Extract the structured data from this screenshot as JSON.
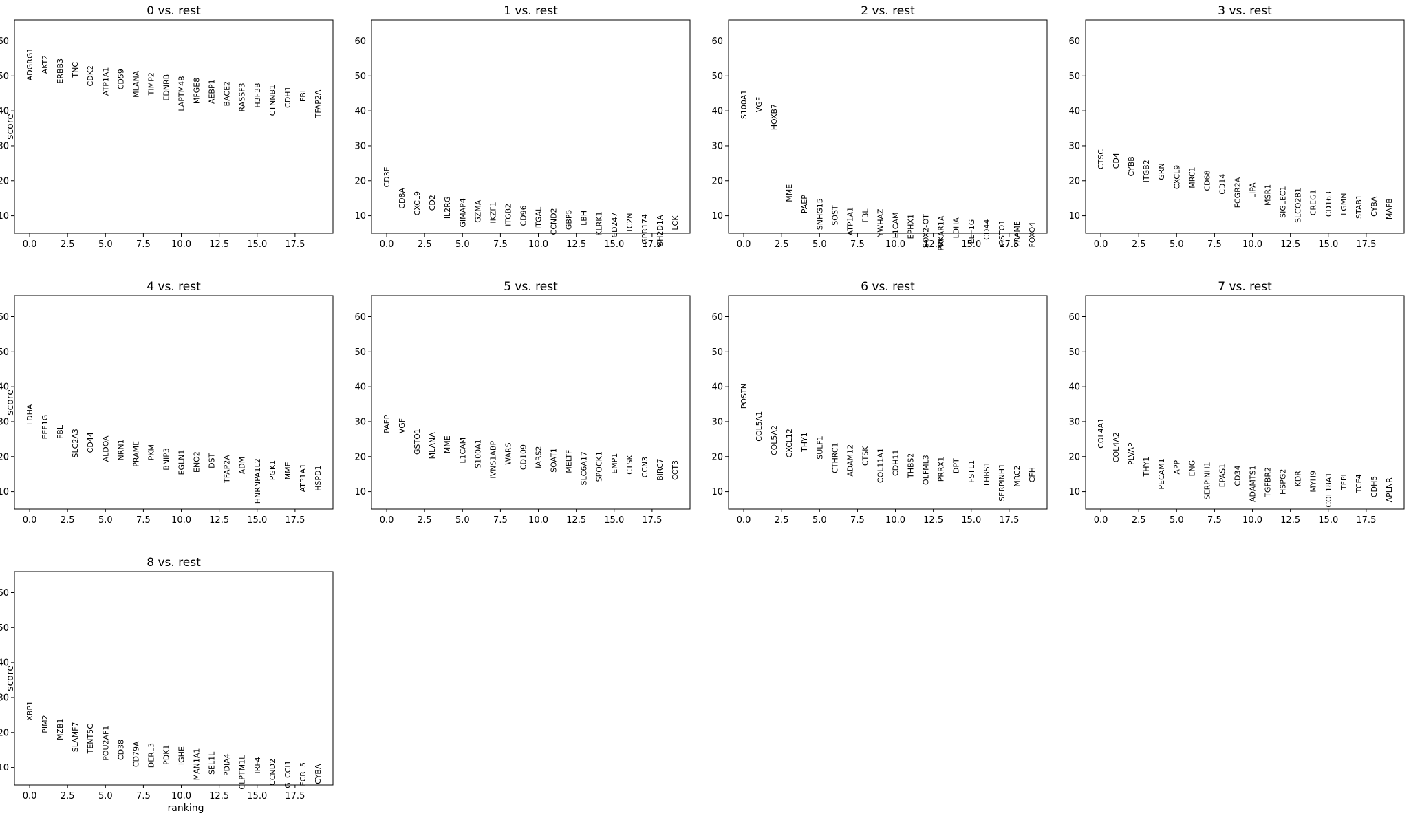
{
  "figure": {
    "ylabel": "score",
    "xlabel": "ranking"
  },
  "chart_data": [
    {
      "type": "scatter",
      "title": "0 vs. rest",
      "ylim": [
        5,
        66
      ],
      "xlim": [
        -1,
        20
      ],
      "xticks": [
        "0.0",
        "2.5",
        "5.0",
        "7.5",
        "10.0",
        "12.5",
        "15.0",
        "17.5"
      ],
      "yticks": [
        "10",
        "20",
        "30",
        "40",
        "50",
        "60"
      ],
      "genes": [
        "ADGRG1",
        "AKT2",
        "ERBB3",
        "TNC",
        "CDK2",
        "ATP1A1",
        "CD59",
        "MLANA",
        "TIMP2",
        "EDNRB",
        "LAPTM4B",
        "MFGE8",
        "AEBP1",
        "BACE2",
        "RASSF3",
        "H3F3B",
        "CTNNB1",
        "CDH1",
        "FBL",
        "TFAP2A"
      ],
      "scores": [
        58,
        56,
        55,
        54,
        53,
        52.5,
        52,
        51.5,
        51,
        50.5,
        50,
        49.5,
        49,
        48.5,
        48,
        48,
        47.5,
        47,
        46.5,
        46
      ]
    },
    {
      "type": "scatter",
      "title": "1 vs. rest",
      "ylim": [
        5,
        66
      ],
      "xlim": [
        -1,
        20
      ],
      "xticks": [
        "0.0",
        "2.5",
        "5.0",
        "7.5",
        "10.0",
        "12.5",
        "15.0",
        "17.5"
      ],
      "yticks": [
        "10",
        "20",
        "30",
        "40",
        "50",
        "60"
      ],
      "genes": [
        "CD3E",
        "CD8A",
        "CXCL9",
        "CD2",
        "IL2RG",
        "GIMAP4",
        "GZMA",
        "IKZF1",
        "ITGB2",
        "CD96",
        "ITGAL",
        "CCND2",
        "GBP5",
        "LBH",
        "KLRK1",
        "CD247",
        "TC2N",
        "GPR174",
        "SH2D1A",
        "LCK"
      ],
      "scores": [
        24,
        18,
        17,
        16,
        15.5,
        15,
        14.5,
        14,
        13.5,
        13,
        12.5,
        12.2,
        11.8,
        11.5,
        11.2,
        11,
        10.8,
        10.5,
        10.2,
        10
      ]
    },
    {
      "type": "scatter",
      "title": "2 vs. rest",
      "ylim": [
        5,
        66
      ],
      "xlim": [
        -1,
        20
      ],
      "xticks": [
        "0.0",
        "2.5",
        "5.0",
        "7.5",
        "10.0",
        "12.5",
        "15.0",
        "17.5"
      ],
      "yticks": [
        "10",
        "20",
        "30",
        "40",
        "50",
        "60"
      ],
      "genes": [
        "S100A1",
        "VGF",
        "HOXB7",
        "MME",
        "PAEP",
        "SNHG15",
        "SOST",
        "ATP1A1",
        "FBL",
        "YWHAZ",
        "L1CAM",
        "EPHX1",
        "SOX2-OT",
        "PRKAR1A",
        "LDHA",
        "EEF1G",
        "CD44",
        "GSTO1",
        "PRAME",
        "FOXO4"
      ],
      "scores": [
        46,
        44,
        42,
        19,
        16,
        15,
        13,
        12.5,
        12,
        12,
        11,
        10.5,
        10.5,
        10,
        9.5,
        9,
        9,
        8.8,
        8.5,
        8.2
      ]
    },
    {
      "type": "scatter",
      "title": "3 vs. rest",
      "ylim": [
        5,
        66
      ],
      "xlim": [
        -1,
        20
      ],
      "xticks": [
        "0.0",
        "2.5",
        "5.0",
        "7.5",
        "10.0",
        "12.5",
        "15.0",
        "17.5"
      ],
      "yticks": [
        "10",
        "20",
        "30",
        "40",
        "50",
        "60"
      ],
      "genes": [
        "CTSC",
        "CD4",
        "CYBB",
        "ITGB2",
        "GRN",
        "CXCL9",
        "MRC1",
        "CD68",
        "CD14",
        "FCGR2A",
        "LIPA",
        "MSR1",
        "SIGLEC1",
        "SLCO2B1",
        "CREG1",
        "CD163",
        "LGMN",
        "STAB1",
        "CYBA",
        "MAFB"
      ],
      "scores": [
        29,
        28,
        27,
        26,
        25,
        24.5,
        24,
        23,
        22,
        21,
        19.5,
        19,
        18.5,
        18,
        17.5,
        17,
        16.5,
        16,
        15.5,
        15
      ]
    },
    {
      "type": "scatter",
      "title": "4 vs. rest",
      "ylim": [
        5,
        66
      ],
      "xlim": [
        -1,
        20
      ],
      "xticks": [
        "0.0",
        "2.5",
        "5.0",
        "7.5",
        "10.0",
        "12.5",
        "15.0",
        "17.5"
      ],
      "yticks": [
        "10",
        "20",
        "30",
        "40",
        "50",
        "60"
      ],
      "genes": [
        "LDHA",
        "EEF1G",
        "FBL",
        "SLC2A3",
        "CD44",
        "ALDOA",
        "NRN1",
        "PRAME",
        "PKM",
        "BNIP3",
        "EGLN1",
        "ENO2",
        "DST",
        "TFAP2A",
        "ADM",
        "HNRNPA1L2",
        "PGK1",
        "MME",
        "ATP1A1",
        "HSPD1"
      ],
      "scores": [
        35,
        32,
        29,
        28,
        27,
        26,
        25,
        24.5,
        23.5,
        22.5,
        22,
        21.5,
        21,
        20.5,
        20,
        19.5,
        19,
        18.5,
        18,
        17.5
      ]
    },
    {
      "type": "scatter",
      "title": "5 vs. rest",
      "ylim": [
        5,
        66
      ],
      "xlim": [
        -1,
        20
      ],
      "xticks": [
        "0.0",
        "2.5",
        "5.0",
        "7.5",
        "10.0",
        "12.5",
        "15.0",
        "17.5"
      ],
      "yticks": [
        "10",
        "20",
        "30",
        "40",
        "50",
        "60"
      ],
      "genes": [
        "PAEP",
        "VGF",
        "GSTO1",
        "MLANA",
        "MME",
        "L1CAM",
        "S100A1",
        "IVNS1ABP",
        "WARS",
        "CD109",
        "IARS2",
        "SOAT1",
        "MELTF",
        "SLC6A17",
        "SPOCK1",
        "EMP1",
        "CTSK",
        "CCN3",
        "BIRC7",
        "CCT3"
      ],
      "scores": [
        32,
        31,
        28,
        27,
        26,
        25.5,
        25,
        24.5,
        24,
        23.5,
        23,
        22.5,
        22,
        21.5,
        21.5,
        21,
        20.5,
        20,
        19.5,
        19
      ]
    },
    {
      "type": "scatter",
      "title": "6 vs. rest",
      "ylim": [
        5,
        66
      ],
      "xlim": [
        -1,
        20
      ],
      "xticks": [
        "0.0",
        "2.5",
        "5.0",
        "7.5",
        "10.0",
        "12.5",
        "15.0",
        "17.5"
      ],
      "yticks": [
        "10",
        "20",
        "30",
        "40",
        "50",
        "60"
      ],
      "genes": [
        "POSTN",
        "COL5A1",
        "COL5A2",
        "CXCL12",
        "THY1",
        "SULF1",
        "CTHRC1",
        "ADAM12",
        "CTSK",
        "COL11A1",
        "CDH11",
        "THBS2",
        "OLFML3",
        "PRRX1",
        "DPT",
        "FSTL1",
        "THBS1",
        "SERPINH1",
        "MRC2",
        "CFH"
      ],
      "scores": [
        41,
        33,
        29,
        28,
        27,
        26,
        24,
        23.5,
        23,
        22.5,
        22,
        21,
        20.5,
        20,
        19.5,
        19,
        18.5,
        18,
        17.5,
        17
      ]
    },
    {
      "type": "scatter",
      "title": "7 vs. rest",
      "ylim": [
        5,
        66
      ],
      "xlim": [
        -1,
        20
      ],
      "xticks": [
        "0.0",
        "2.5",
        "5.0",
        "7.5",
        "10.0",
        "12.5",
        "15.0",
        "17.5"
      ],
      "yticks": [
        "10",
        "20",
        "30",
        "40",
        "50",
        "60"
      ],
      "genes": [
        "COL4A1",
        "COL4A2",
        "PLVAP",
        "THY1",
        "PECAM1",
        "APP",
        "ENG",
        "SERPINH1",
        "EPAS1",
        "CD34",
        "ADAMTS1",
        "TGFBR2",
        "HSPG2",
        "KDR",
        "MYH9",
        "COL18A1",
        "TFPI",
        "TCF4",
        "CDH5",
        "APLNR"
      ],
      "scores": [
        31,
        27,
        24,
        20,
        19.5,
        19,
        19,
        18.5,
        18,
        17.5,
        17.5,
        17,
        16.5,
        16,
        16,
        15.5,
        15,
        15,
        14.5,
        14
      ]
    },
    {
      "type": "scatter",
      "title": "8 vs. rest",
      "ylim": [
        5,
        66
      ],
      "xlim": [
        -1,
        20
      ],
      "xticks": [
        "0.0",
        "2.5",
        "5.0",
        "7.5",
        "10.0",
        "12.5",
        "15.0",
        "17.5"
      ],
      "yticks": [
        "10",
        "20",
        "30",
        "40",
        "50",
        "60"
      ],
      "genes": [
        "XBP1",
        "PIM2",
        "MZB1",
        "SLAMF7",
        "TENT5C",
        "POU2AF1",
        "CD38",
        "CD79A",
        "DERL3",
        "PDK1",
        "IGHE",
        "MAN1A1",
        "SEL1L",
        "PDIA4",
        "CLPTM1L",
        "IRF4",
        "CCND2",
        "GLCCI1",
        "FCRL5",
        "CYBA"
      ],
      "scores": [
        29,
        25,
        24,
        23,
        22.5,
        22,
        18,
        17.5,
        17,
        16.5,
        16,
        15.5,
        14.5,
        14,
        13.5,
        13,
        12.5,
        12,
        11.5,
        11
      ]
    }
  ]
}
